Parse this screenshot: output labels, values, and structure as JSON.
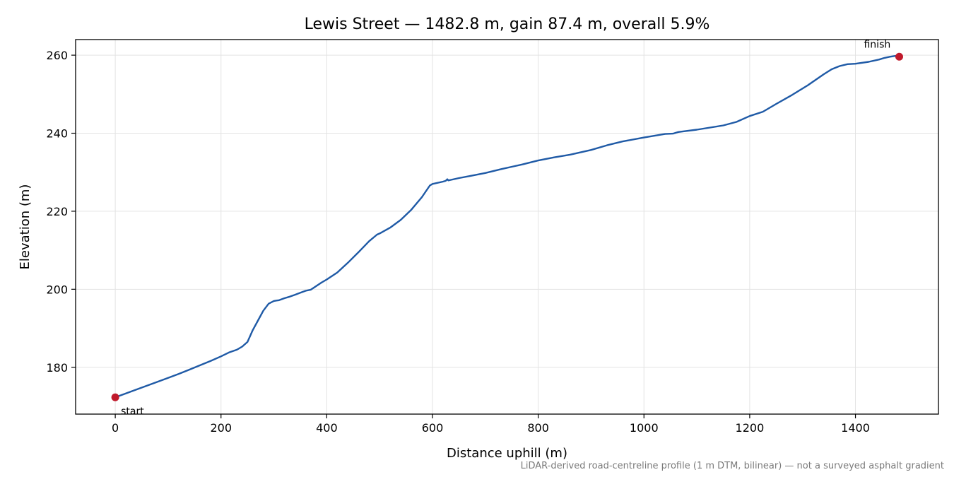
{
  "chart_data": {
    "type": "line",
    "title": "Lewis Street — 1482.8 m, gain 87.4 m, overall 5.9%",
    "xlabel": "Distance uphill (m)",
    "ylabel": "Elevation (m)",
    "xlim": [
      -75,
      1557
    ],
    "ylim": [
      168,
      264
    ],
    "xticks": [
      0,
      200,
      400,
      600,
      800,
      1000,
      1200,
      1400
    ],
    "yticks": [
      180,
      200,
      220,
      240,
      260
    ],
    "grid": true,
    "line_color": "#1f5aa6",
    "marker_color": "#c0192b",
    "series": [
      {
        "x": [
          0,
          20,
          40,
          60,
          80,
          100,
          120,
          140,
          160,
          180,
          200,
          215,
          230,
          240,
          250,
          255,
          260,
          270,
          280,
          290,
          300,
          305,
          310,
          320,
          330,
          340,
          350,
          360,
          370,
          380,
          390,
          400,
          420,
          440,
          460,
          480,
          495,
          500,
          520,
          540,
          560,
          580,
          590,
          595,
          600,
          620,
          625,
          628,
          630,
          650,
          670,
          700,
          730,
          750,
          770,
          800,
          830,
          860,
          900,
          930,
          960,
          1000,
          1040,
          1055,
          1065,
          1100,
          1150,
          1175,
          1200,
          1225,
          1250,
          1280,
          1310,
          1340,
          1355,
          1370,
          1385,
          1400,
          1425,
          1445,
          1455,
          1465,
          1475,
          1482.8
        ],
        "y": [
          172.3,
          173.3,
          174.3,
          175.3,
          176.3,
          177.3,
          178.3,
          179.4,
          180.5,
          181.6,
          182.8,
          183.8,
          184.5,
          185.3,
          186.5,
          188.0,
          189.5,
          192.0,
          194.5,
          196.3,
          197.0,
          197.1,
          197.2,
          197.7,
          198.1,
          198.6,
          199.1,
          199.6,
          199.9,
          200.8,
          201.7,
          202.5,
          204.3,
          206.8,
          209.5,
          212.3,
          214.0,
          214.3,
          215.8,
          217.8,
          220.4,
          223.6,
          225.6,
          226.6,
          227.0,
          227.6,
          227.8,
          228.2,
          227.9,
          228.5,
          229.0,
          229.8,
          230.8,
          231.4,
          232.0,
          233.0,
          233.8,
          234.5,
          235.7,
          236.9,
          237.9,
          238.9,
          239.8,
          239.9,
          240.3,
          240.9,
          242.0,
          242.9,
          244.4,
          245.5,
          247.5,
          249.8,
          252.3,
          255.1,
          256.4,
          257.2,
          257.7,
          257.8,
          258.3,
          258.9,
          259.3,
          259.6,
          259.8,
          259.6
        ]
      }
    ],
    "annotations": [
      {
        "label": "start",
        "x": 0,
        "y": 172.3
      },
      {
        "label": "finish",
        "x": 1482.8,
        "y": 259.6
      }
    ],
    "footnote": "LiDAR-derived road-centreline profile (1 m DTM, bilinear) — not a surveyed asphalt gradient"
  }
}
